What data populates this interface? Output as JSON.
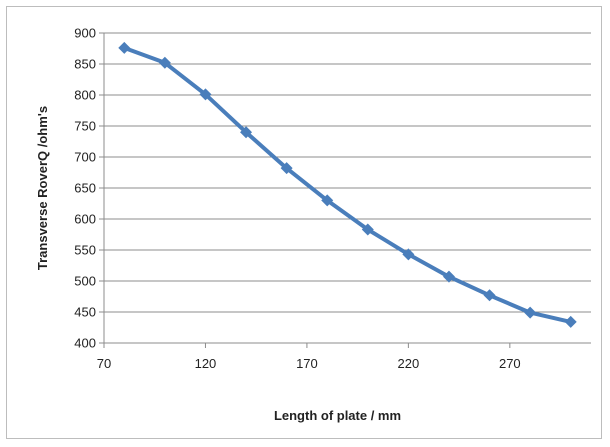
{
  "chart_data": {
    "type": "line",
    "xlabel": "Length of plate / mm",
    "ylabel": "Transverse RoverQ /ohm's",
    "xlim": [
      70,
      310
    ],
    "ylim": [
      400,
      900
    ],
    "x_ticks": [
      70,
      120,
      170,
      220,
      270
    ],
    "y_ticks": [
      400,
      450,
      500,
      550,
      600,
      650,
      700,
      750,
      800,
      850,
      900
    ],
    "grid": "horizontal",
    "legend": "none",
    "series": [
      {
        "color": "#4a7ebb",
        "marker": "diamond",
        "x": [
          80,
          100,
          120,
          140,
          160,
          180,
          200,
          220,
          240,
          260,
          280,
          300
        ],
        "y": [
          876,
          852,
          801,
          740,
          682,
          630,
          583,
          543,
          507,
          477,
          449,
          434
        ]
      }
    ]
  }
}
